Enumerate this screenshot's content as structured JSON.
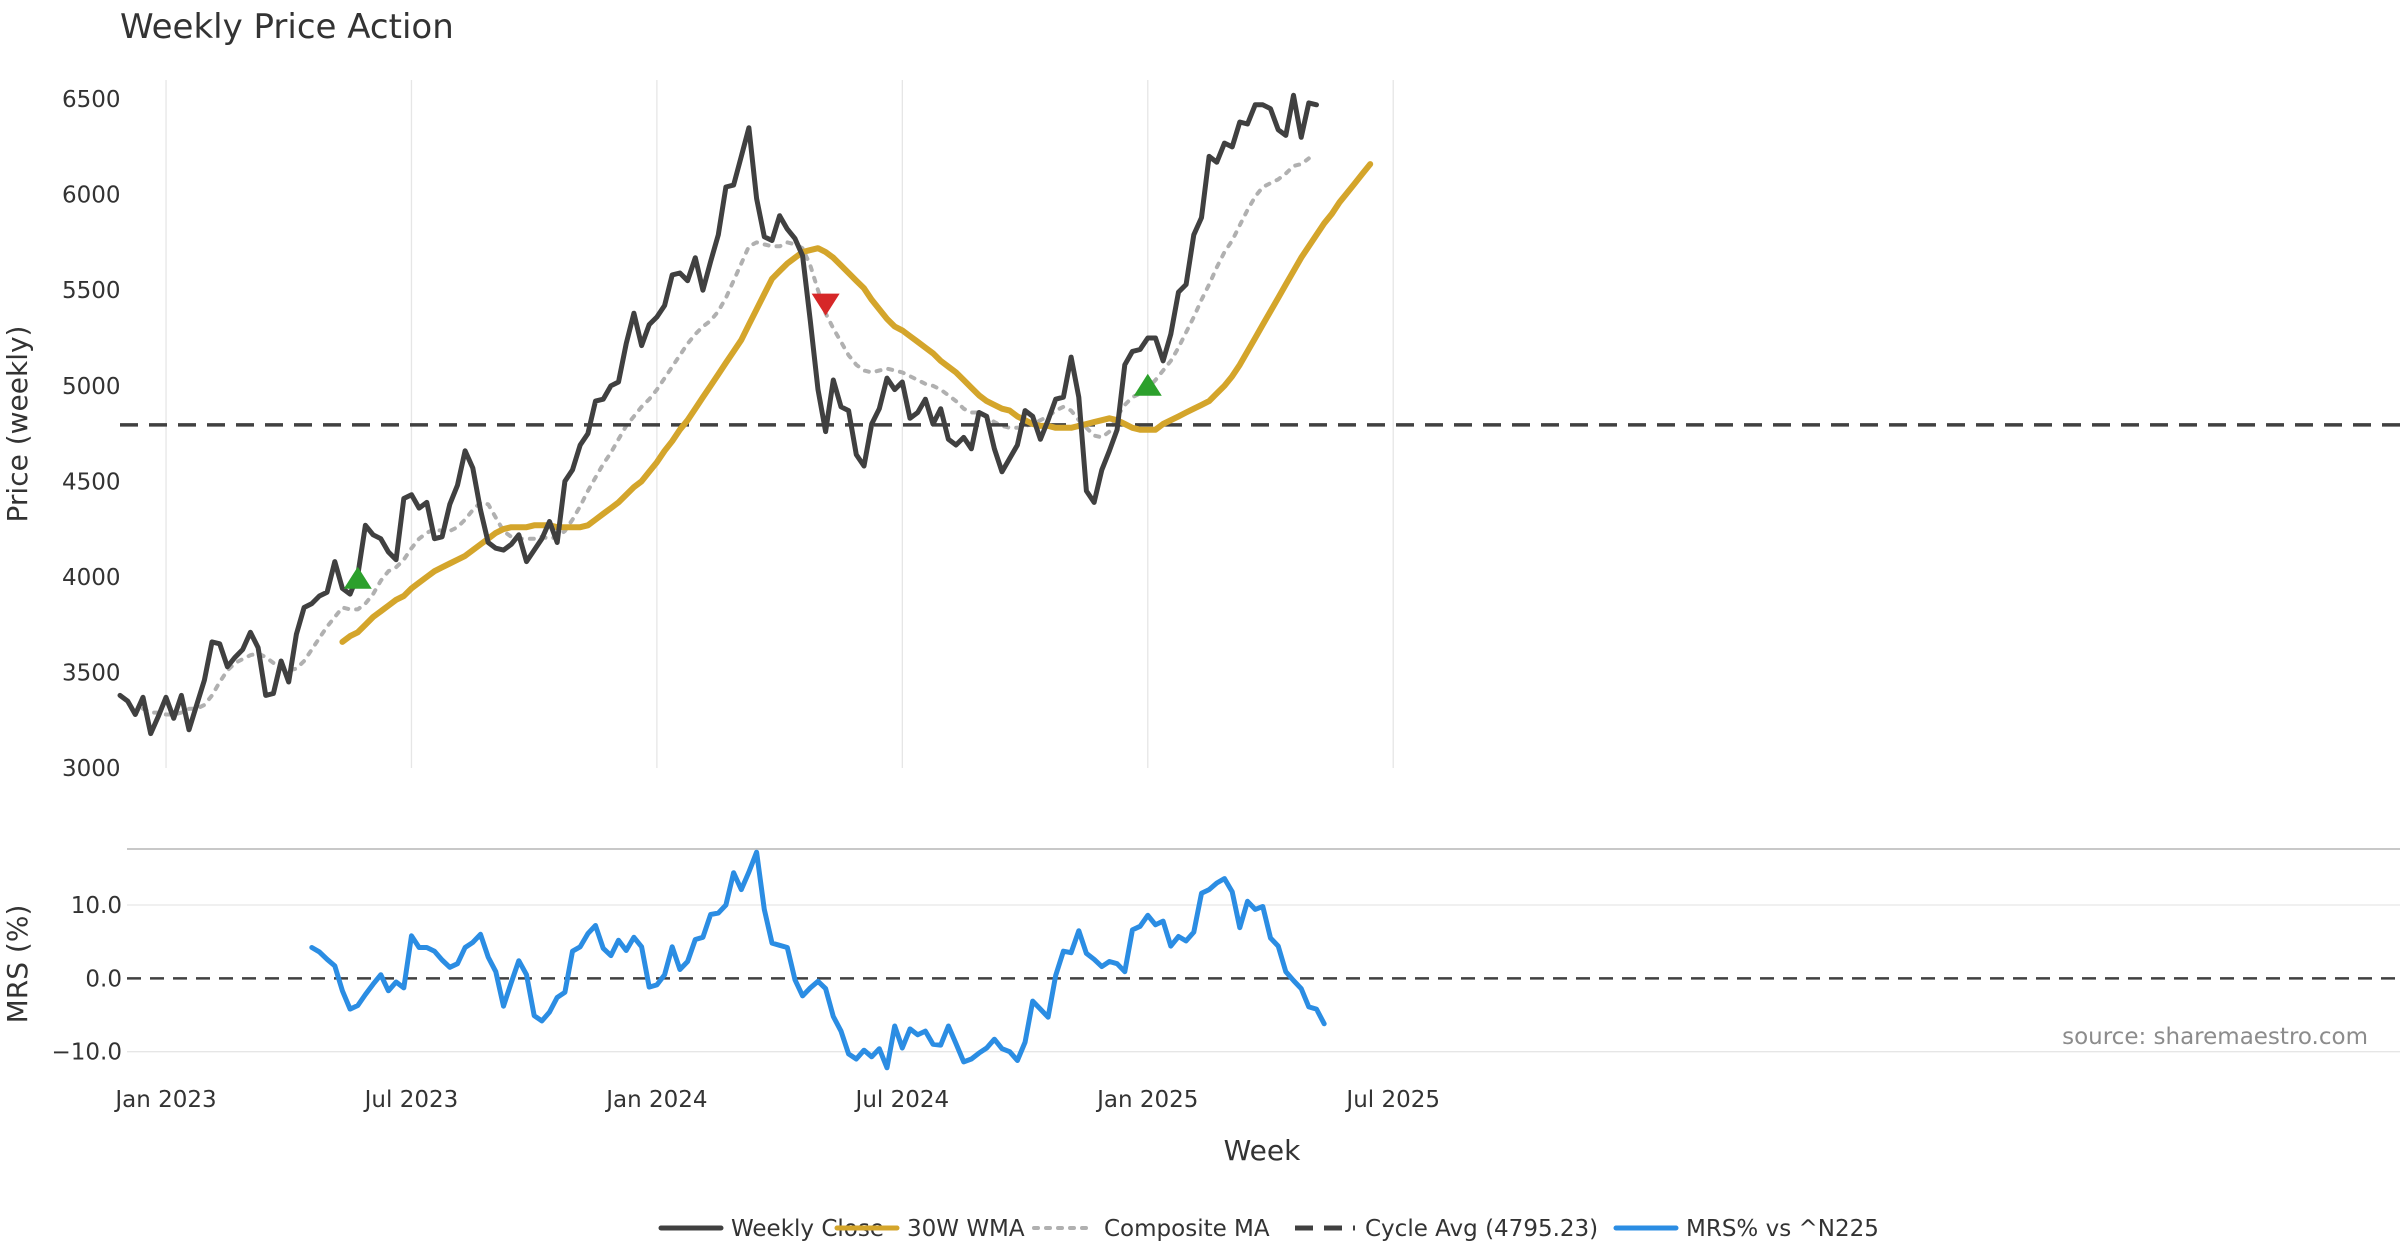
{
  "chart_data": {
    "type": "line",
    "title": "Weekly Price Action",
    "xlabel": "Week",
    "x_ticks": [
      "Jan 2023",
      "Jul 2023",
      "Jan 2024",
      "Jul 2024",
      "Jan 2025",
      "Jul 2025"
    ],
    "panels": [
      {
        "name": "price",
        "ylabel": "Price (weekly)",
        "ylim": [
          3000,
          6600
        ],
        "y_ticks": [
          "3000",
          "3500",
          "4000",
          "4500",
          "5000",
          "5500",
          "6000",
          "6500"
        ],
        "series": [
          {
            "name": "Weekly Close",
            "color": "#404040",
            "style": "solid",
            "start_week": 0,
            "values": [
              3380,
              3350,
              3280,
              3370,
              3180,
              3270,
              3370,
              3260,
              3380,
              3200,
              3330,
              3460,
              3660,
              3650,
              3530,
              3580,
              3620,
              3710,
              3630,
              3380,
              3390,
              3560,
              3450,
              3700,
              3840,
              3860,
              3900,
              3920,
              4080,
              3940,
              3910,
              4010,
              4270,
              4220,
              4200,
              4130,
              4090,
              4410,
              4430,
              4360,
              4390,
              4200,
              4210,
              4380,
              4480,
              4660,
              4570,
              4350,
              4180,
              4150,
              4140,
              4170,
              4220,
              4080,
              4140,
              4200,
              4290,
              4180,
              4500,
              4560,
              4690,
              4750,
              4920,
              4930,
              5000,
              5020,
              5220,
              5380,
              5210,
              5320,
              5360,
              5420,
              5580,
              5590,
              5550,
              5670,
              5500,
              5650,
              5790,
              6040,
              6050,
              6200,
              6350,
              5980,
              5780,
              5760,
              5890,
              5820,
              5770,
              5680,
              5340,
              4980,
              4760,
              5030,
              4890,
              4870,
              4640,
              4580,
              4800,
              4880,
              5040,
              4980,
              5020,
              4830,
              4860,
              4930,
              4800,
              4880,
              4720,
              4690,
              4730,
              4670,
              4860,
              4840,
              4670,
              4550,
              4620,
              4690,
              4870,
              4840,
              4720,
              4820,
              4930,
              4940,
              5150,
              4940,
              4450,
              4390,
              4560,
              4660,
              4770,
              5110,
              5180,
              5190,
              5250,
              5250,
              5130,
              5270,
              5490,
              5530,
              5790,
              5880,
              6200,
              6170,
              6270,
              6250,
              6380,
              6370,
              6470,
              6470,
              6450,
              6340,
              6310,
              6520,
              6300,
              6480,
              6470
            ]
          },
          {
            "name": "30W WMA",
            "color": "#d4a52b",
            "style": "solid",
            "start_week": 29,
            "values": [
              3660,
              3690,
              3710,
              3750,
              3790,
              3820,
              3850,
              3880,
              3900,
              3940,
              3970,
              4000,
              4030,
              4050,
              4070,
              4090,
              4110,
              4140,
              4170,
              4200,
              4230,
              4250,
              4260,
              4260,
              4260,
              4270,
              4270,
              4270,
              4260,
              4260,
              4260,
              4260,
              4270,
              4300,
              4330,
              4360,
              4390,
              4430,
              4470,
              4500,
              4550,
              4600,
              4660,
              4710,
              4770,
              4820,
              4880,
              4940,
              5000,
              5060,
              5120,
              5180,
              5240,
              5320,
              5400,
              5480,
              5560,
              5600,
              5640,
              5670,
              5700,
              5710,
              5720,
              5700,
              5670,
              5630,
              5590,
              5550,
              5510,
              5450,
              5400,
              5350,
              5310,
              5290,
              5260,
              5230,
              5200,
              5170,
              5130,
              5100,
              5070,
              5030,
              4990,
              4950,
              4920,
              4900,
              4880,
              4870,
              4840,
              4820,
              4800,
              4790,
              4790,
              4780,
              4780,
              4780,
              4790,
              4800,
              4810,
              4820,
              4830,
              4820,
              4800,
              4780,
              4770,
              4770,
              4770,
              4800,
              4820,
              4840,
              4860,
              4880,
              4900,
              4920,
              4960,
              5000,
              5050,
              5110,
              5180,
              5250,
              5320,
              5390,
              5460,
              5530,
              5600,
              5670,
              5730,
              5790,
              5850,
              5900,
              5960,
              6010,
              6060,
              6110,
              6160
            ]
          },
          {
            "name": "Composite MA",
            "color": "#b0b0b0",
            "style": "dotted",
            "start_week": 3,
            "values": [
              3310,
              3290,
              3290,
              3280,
              3280,
              3290,
              3310,
              3310,
              3330,
              3380,
              3450,
              3510,
              3550,
              3570,
              3590,
              3600,
              3580,
              3550,
              3520,
              3510,
              3520,
              3560,
              3620,
              3680,
              3740,
              3790,
              3840,
              3830,
              3830,
              3860,
              3910,
              3980,
              4030,
              4050,
              4090,
              4150,
              4200,
              4230,
              4250,
              4240,
              4240,
              4260,
              4300,
              4350,
              4390,
              4380,
              4310,
              4240,
              4210,
              4200,
              4200,
              4200,
              4210,
              4200,
              4210,
              4240,
              4300,
              4370,
              4450,
              4520,
              4590,
              4650,
              4720,
              4790,
              4840,
              4890,
              4930,
              4980,
              5040,
              5100,
              5160,
              5220,
              5270,
              5310,
              5340,
              5390,
              5460,
              5550,
              5640,
              5730,
              5750,
              5740,
              5730,
              5730,
              5750,
              5740,
              5720,
              5630,
              5500,
              5380,
              5300,
              5230,
              5160,
              5110,
              5080,
              5070,
              5080,
              5090,
              5080,
              5070,
              5050,
              5030,
              5010,
              5000,
              4980,
              4950,
              4920,
              4880,
              4860,
              4860,
              4840,
              4810,
              4790,
              4780,
              4780,
              4790,
              4800,
              4820,
              4840,
              4870,
              4890,
              4870,
              4820,
              4780,
              4740,
              4730,
              4760,
              4840,
              4900,
              4940,
              4960,
              4990,
              5030,
              5080,
              5130,
              5200,
              5280,
              5360,
              5450,
              5530,
              5620,
              5700,
              5760,
              5840,
              5920,
              5990,
              6040,
              6060,
              6080,
              6110,
              6150,
              6160,
              6190
            ]
          },
          {
            "name": "Cycle Avg (4795.23)",
            "color": "#404040",
            "style": "dashed",
            "value": 4795.23
          }
        ],
        "signals": [
          {
            "type": "buy",
            "week": 31,
            "value": 3990,
            "color": "#2ca02c"
          },
          {
            "type": "sell",
            "week": 92,
            "value": 5430,
            "color": "#d62728"
          },
          {
            "type": "buy",
            "week": 134,
            "value": 5000,
            "color": "#2ca02c"
          }
        ]
      },
      {
        "name": "mrs",
        "ylabel": "MRS (%)",
        "ylim": [
          -12.5,
          17.5
        ],
        "y_ticks": [
          "−10.0",
          "0.0",
          "10.0"
        ],
        "y_tick_values": [
          -10,
          0,
          10
        ],
        "series": [
          {
            "name": "MRS% vs ^N225",
            "color": "#2b8de3",
            "style": "solid",
            "start_week": 25,
            "values": [
              4.2,
              3.6,
              2.6,
              1.7,
              -1.7,
              -4.2,
              -3.7,
              -2.2,
              -0.8,
              0.5,
              -1.7,
              -0.5,
              -1.3,
              5.8,
              4.2,
              4.2,
              3.7,
              2.5,
              1.5,
              2.0,
              4.2,
              4.9,
              6.0,
              2.9,
              0.9,
              -3.8,
              -0.6,
              2.4,
              0.5,
              -5.1,
              -5.8,
              -4.6,
              -2.6,
              -1.9,
              3.7,
              4.3,
              6.1,
              7.2,
              4.1,
              3.1,
              5.2,
              3.8,
              5.6,
              4.3,
              -1.2,
              -0.9,
              0.5,
              4.3,
              1.2,
              2.3,
              5.3,
              5.6,
              8.7,
              8.9,
              10.0,
              14.4,
              12.1,
              14.5,
              17.2,
              9.4,
              4.8,
              4.5,
              4.2,
              -0.2,
              -2.4,
              -1.3,
              -0.4,
              -1.4,
              -5.2,
              -7.2,
              -10.3,
              -11.0,
              -9.8,
              -10.7,
              -9.6,
              -12.2,
              -6.5,
              -9.5,
              -6.9,
              -7.7,
              -7.2,
              -9.0,
              -9.1,
              -6.5,
              -8.9,
              -11.4,
              -11.0,
              -10.2,
              -9.5,
              -8.3,
              -9.6,
              -10.0,
              -11.2,
              -8.7,
              -3.1,
              -4.2,
              -5.3,
              0.4,
              3.7,
              3.5,
              6.5,
              3.4,
              2.6,
              1.6,
              2.3,
              2.0,
              0.9,
              6.6,
              7.1,
              8.6,
              7.3,
              7.8,
              4.4,
              5.7,
              5.1,
              6.3,
              11.6,
              12.1,
              13.0,
              13.6,
              11.8,
              6.9,
              10.5,
              9.4,
              9.8,
              5.5,
              4.4,
              0.9,
              -0.3,
              -1.4,
              -3.9,
              -4.2,
              -6.2
            ]
          },
          {
            "name": "Zero line",
            "color": "#404040",
            "style": "dashed",
            "value": 0
          }
        ]
      }
    ],
    "legend": {
      "placement": "bottom-center",
      "entries": [
        {
          "label": "Weekly Close",
          "color": "#404040",
          "style": "solid"
        },
        {
          "label": "30W WMA",
          "color": "#d4a52b",
          "style": "solid"
        },
        {
          "label": "Composite MA",
          "color": "#b0b0b0",
          "style": "dotted"
        },
        {
          "label": "Cycle Avg (4795.23)",
          "color": "#404040",
          "style": "dashed"
        },
        {
          "label": "MRS% vs ^N225",
          "color": "#2b8de3",
          "style": "solid"
        }
      ]
    },
    "source": "source: sharemaestro.com"
  }
}
